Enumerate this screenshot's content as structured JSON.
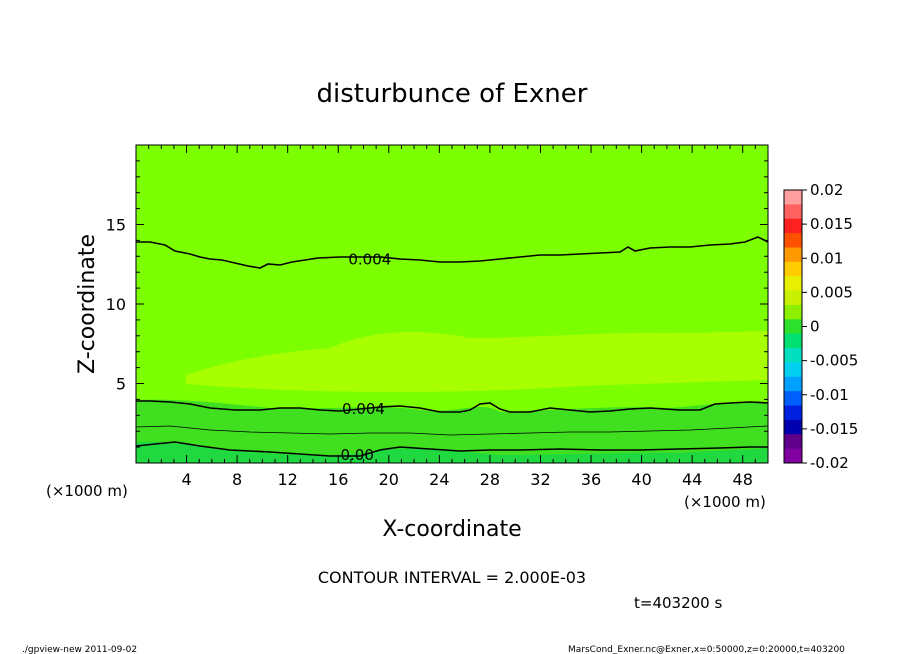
{
  "chart_data": {
    "type": "contour",
    "title": "disturbunce of Exner",
    "xlabel": "X-coordinate",
    "ylabel": "Z-coordinate",
    "x_unit": "(×1000 m)",
    "x_unit_right": "(×1000 m)",
    "z_unit": "(×1000 m)",
    "xlim": [
      0,
      50
    ],
    "ylim": [
      0,
      20
    ],
    "xticks": [
      4,
      8,
      12,
      16,
      20,
      24,
      28,
      32,
      36,
      40,
      44,
      48
    ],
    "yticks": [
      5,
      10,
      15
    ],
    "contour_interval_text": "CONTOUR INTERVAL = 2.000E-03",
    "time_text": "t=403200 s",
    "contour_labels": [
      {
        "text": "0.004",
        "x": 18.5,
        "z": 12.8
      },
      {
        "text": "0.004",
        "x": 18.0,
        "z": 3.4
      },
      {
        "text": "0.00",
        "x": 17.5,
        "z": 0.5
      }
    ],
    "colorbar": {
      "ticks": [
        "0.02",
        "0.015",
        "0.01",
        "0.005",
        "0",
        "-0.005",
        "-0.01",
        "-0.015",
        "-0.02"
      ],
      "colors": [
        "#ff9f9f",
        "#ff6060",
        "#ff2020",
        "#ff5000",
        "#ff9900",
        "#ffcc00",
        "#e6f000",
        "#c8f000",
        "#8cf000",
        "#2ce02c",
        "#00e070",
        "#00e0c0",
        "#00d0f0",
        "#00a0ff",
        "#0060ff",
        "#0020e0",
        "#0000b0",
        "#60008a",
        "#8000a0"
      ]
    },
    "fields": {
      "background_color": "#7cff00",
      "upper_band_color": "#a8ff00",
      "lower_band_color": "#40e020",
      "bottom_band_color": "#20d840"
    }
  },
  "footer": {
    "left": "./gpview-new   2011-09-02",
    "right": "MarsCond_Exner.nc@Exner,x=0:50000,z=0:20000,t=403200"
  }
}
